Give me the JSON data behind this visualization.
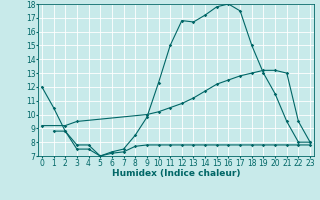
{
  "line1_x": [
    0,
    1,
    2,
    3,
    4,
    5,
    6,
    7,
    8,
    9,
    10,
    11,
    12,
    13,
    14,
    15,
    16,
    17,
    18,
    19,
    20,
    21,
    22,
    23
  ],
  "line1_y": [
    12,
    10.5,
    8.8,
    7.5,
    7.5,
    7.0,
    7.3,
    7.5,
    8.5,
    9.8,
    12.3,
    15.0,
    16.8,
    16.7,
    17.2,
    17.8,
    18.0,
    17.5,
    15.0,
    13.0,
    11.5,
    9.5,
    8.0,
    8.0
  ],
  "line2_x": [
    0,
    2,
    3,
    9,
    10,
    11,
    12,
    13,
    14,
    15,
    16,
    17,
    18,
    19,
    20,
    21,
    22,
    23
  ],
  "line2_y": [
    9.2,
    9.2,
    9.5,
    10.0,
    10.2,
    10.5,
    10.8,
    11.2,
    11.7,
    12.2,
    12.5,
    12.8,
    13.0,
    13.2,
    13.2,
    13.0,
    9.5,
    8.0
  ],
  "line3_x": [
    1,
    2,
    3,
    4,
    5,
    6,
    7,
    8,
    9,
    10,
    11,
    12,
    13,
    14,
    15,
    16,
    17,
    18,
    19,
    20,
    21,
    22,
    23
  ],
  "line3_y": [
    8.8,
    8.8,
    7.8,
    7.8,
    7.0,
    7.2,
    7.3,
    7.7,
    7.8,
    7.8,
    7.8,
    7.8,
    7.8,
    7.8,
    7.8,
    7.8,
    7.8,
    7.8,
    7.8,
    7.8,
    7.8,
    7.8,
    7.8
  ],
  "line_color": "#006666",
  "bg_color": "#c8eaea",
  "grid_color": "#b0d8d8",
  "ylim": [
    7,
    18
  ],
  "xlim": [
    -0.3,
    23.3
  ],
  "yticks": [
    7,
    8,
    9,
    10,
    11,
    12,
    13,
    14,
    15,
    16,
    17,
    18
  ],
  "xticks": [
    0,
    1,
    2,
    3,
    4,
    5,
    6,
    7,
    8,
    9,
    10,
    11,
    12,
    13,
    14,
    15,
    16,
    17,
    18,
    19,
    20,
    21,
    22,
    23
  ],
  "xlabel": "Humidex (Indice chaleur)",
  "xlabel_fontsize": 6.5,
  "tick_fontsize": 5.5
}
